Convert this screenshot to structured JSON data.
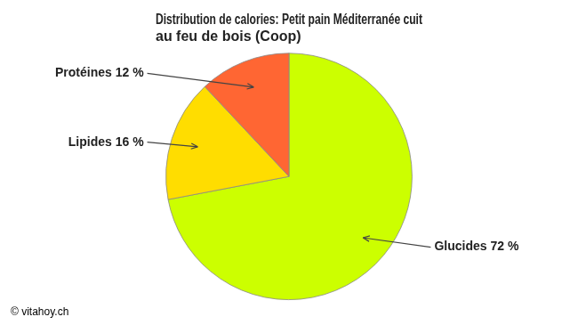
{
  "chart_data": {
    "type": "pie",
    "title": "Distribution de calories: Petit pain Méditerranée cuit\nau feu de bois (Coop)",
    "categories": [
      "Glucides 72 %",
      "Lipides 16 %",
      "Protéines 12 %"
    ],
    "values": [
      72,
      16,
      12
    ],
    "colors": [
      "#ccff00",
      "#ffdd00",
      "#ff6633"
    ],
    "annotations": [
      "© vitahoy.ch"
    ],
    "legend": false
  }
}
